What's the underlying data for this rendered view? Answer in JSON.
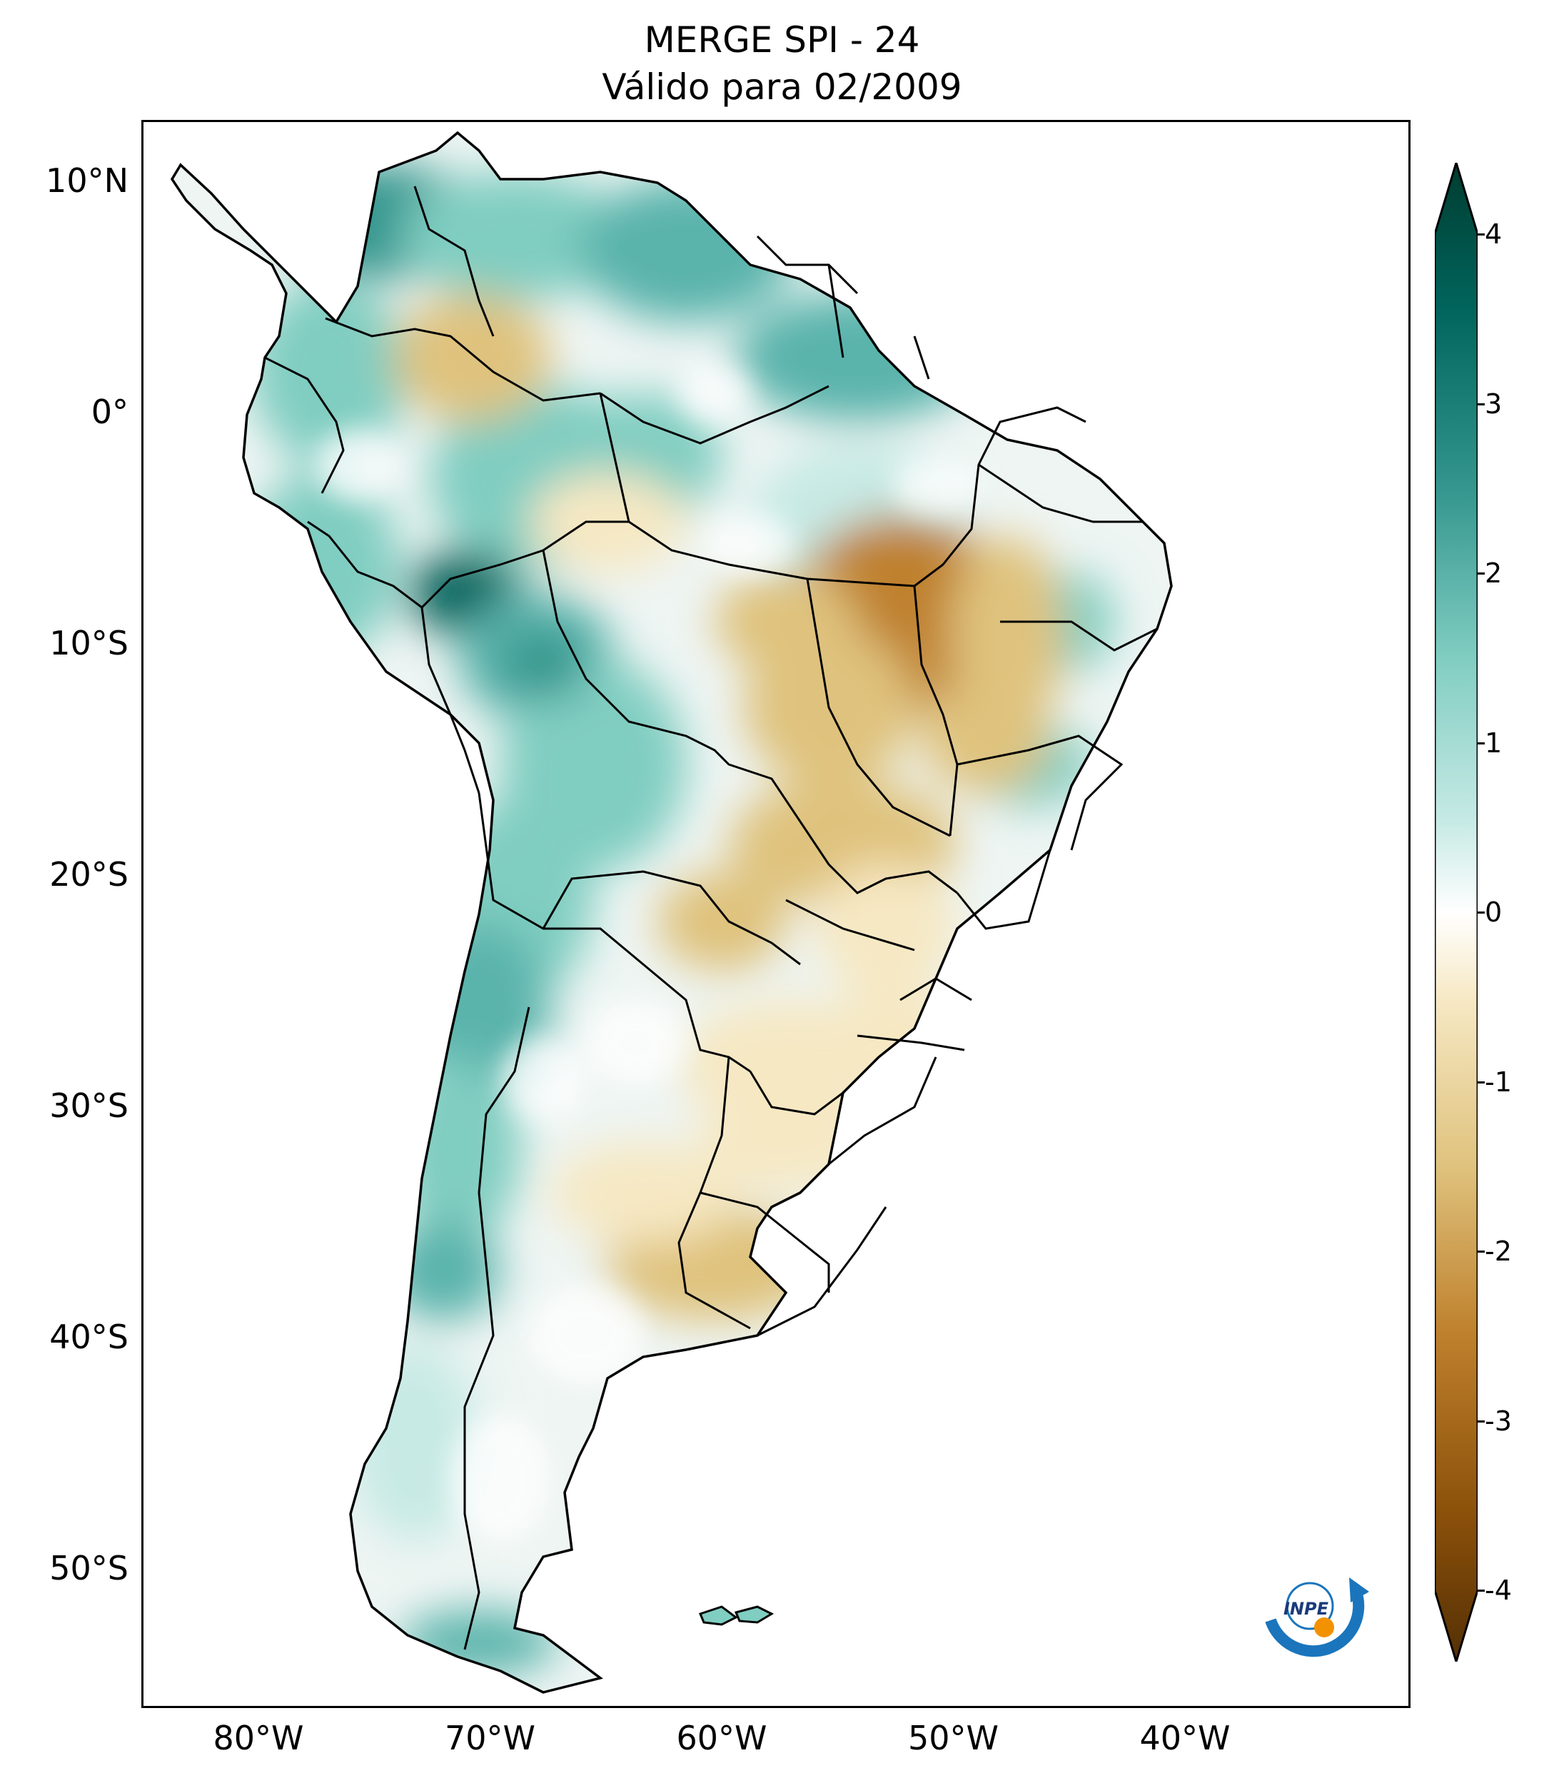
{
  "title_line1": "MERGE   SPI - 24",
  "title_line2": "Válido para 02/2009",
  "lat_ticks": [
    {
      "label": "10°N",
      "value": 10
    },
    {
      "label": "0°",
      "value": 0
    },
    {
      "label": "10°S",
      "value": -10
    },
    {
      "label": "20°S",
      "value": -20
    },
    {
      "label": "30°S",
      "value": -30
    },
    {
      "label": "40°S",
      "value": -40
    },
    {
      "label": "50°S",
      "value": -50
    }
  ],
  "lon_ticks": [
    {
      "label": "80°W",
      "value": -80
    },
    {
      "label": "70°W",
      "value": -70
    },
    {
      "label": "60°W",
      "value": -60
    },
    {
      "label": "50°W",
      "value": -50
    },
    {
      "label": "40°W",
      "value": -40
    }
  ],
  "colorbar": {
    "ticks": [
      "4",
      "3",
      "2",
      "1",
      "0",
      "-1",
      "-2",
      "-3",
      "-4"
    ],
    "min": -4,
    "max": 4,
    "colors": {
      "dry_extreme": "#543005",
      "dry_strong": "#8c510a",
      "dry_moderate": "#bf812d",
      "dry_mild": "#dfc27d",
      "dry_weak": "#f6e8c3",
      "neutral": "#ffffff",
      "wet_weak": "#c7eae5",
      "wet_mild": "#80cdc1",
      "wet_moderate": "#35978f",
      "wet_strong": "#01665e",
      "wet_extreme": "#003c30"
    }
  },
  "logo": {
    "text": "INPE",
    "icon": "inpe-logo-icon"
  }
}
